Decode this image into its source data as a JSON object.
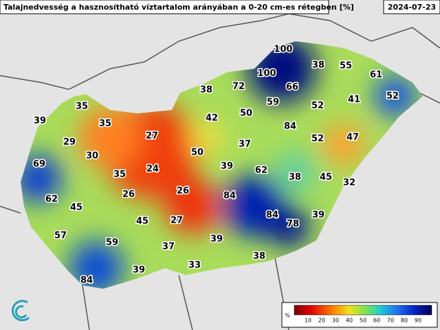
{
  "header": {
    "title": "Talajnedvesség a hasznosítható víztartalom arányában a 0-20 cm-es rétegben [%]",
    "date": "2024-07-23"
  },
  "labels": [
    100,
    38,
    55,
    100,
    61,
    72,
    66,
    38,
    35,
    59,
    52,
    41,
    52,
    50,
    42,
    39,
    35,
    84,
    27,
    29,
    37,
    52,
    47,
    30,
    50,
    69,
    39,
    24,
    62,
    35,
    38,
    45,
    32,
    26,
    26,
    84,
    62,
    45,
    84,
    78,
    39,
    45,
    27,
    57,
    59,
    39,
    37,
    38,
    33,
    39,
    84
  ],
  "legend": {
    "unit": "%",
    "ticks": [
      10,
      20,
      30,
      40,
      50,
      60,
      70,
      80,
      90
    ]
  }
}
